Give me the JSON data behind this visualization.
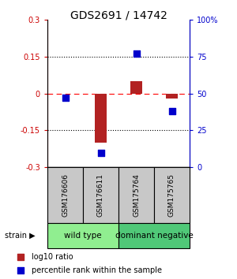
{
  "title": "GDS2691 / 14742",
  "samples": [
    "GSM176606",
    "GSM176611",
    "GSM175764",
    "GSM175765"
  ],
  "log10_ratio": [
    0.0,
    -0.2,
    0.05,
    -0.02
  ],
  "percentile_rank": [
    47,
    10,
    77,
    38
  ],
  "ylim_left": [
    -0.3,
    0.3
  ],
  "ylim_right": [
    0,
    100
  ],
  "yticks_left": [
    -0.3,
    -0.15,
    0,
    0.15,
    0.3
  ],
  "yticks_right": [
    0,
    25,
    50,
    75,
    100
  ],
  "ytick_labels_right": [
    "0",
    "25",
    "50",
    "75",
    "100%"
  ],
  "groups": [
    {
      "label": "wild type",
      "samples": [
        0,
        1
      ],
      "color": "#90EE90"
    },
    {
      "label": "dominant negative",
      "samples": [
        2,
        3
      ],
      "color": "#50C878"
    }
  ],
  "bar_color": "#B22222",
  "point_color": "#0000CC",
  "bar_width": 0.35,
  "point_size": 35,
  "left_axis_color": "#CC0000",
  "right_axis_color": "#0000CC",
  "gray_color": "#C8C8C8",
  "group_label_fontsize": 7.5,
  "sample_fontsize": 6.5,
  "title_fontsize": 10,
  "legend_fontsize": 7,
  "legend_marker_size": 35
}
